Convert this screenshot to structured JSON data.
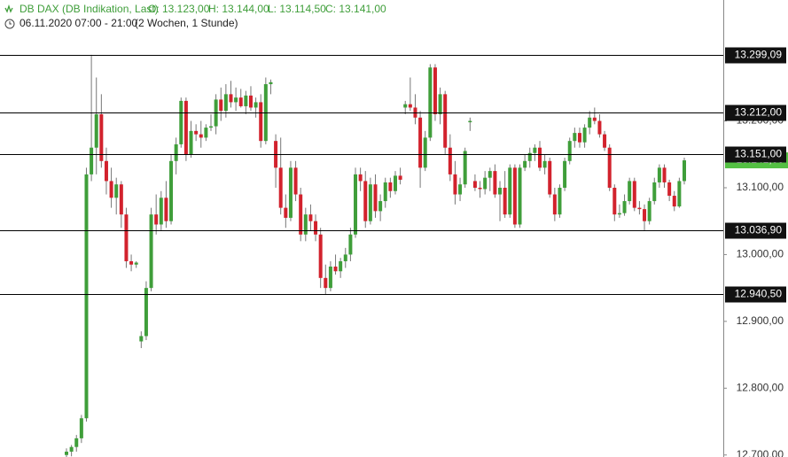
{
  "header": {
    "symbol": "DB DAX (DB Indikation, Last)",
    "open": "O: 13.123,00",
    "high": "H: 13.144,00",
    "low": "L: 13.114,50",
    "close": "C: 13.141,00",
    "period": "06.11.2020 07:00 - 21:00",
    "range": "(2 Wochen, 1 Stunde)"
  },
  "chart_data": {
    "type": "candlestick",
    "ylim": [
      12697,
      13381
    ],
    "yticks": [
      {
        "value": 13200,
        "label": "13.200,00"
      },
      {
        "value": 13100,
        "label": "13.100,00"
      },
      {
        "value": 13000,
        "label": "13.000,00"
      },
      {
        "value": 12900,
        "label": "12.900,00"
      },
      {
        "value": 12800,
        "label": "12.800,00"
      },
      {
        "value": 12700,
        "label": "12.700,00"
      }
    ],
    "levels": [
      {
        "value": 13299.09,
        "label": "13.299,09"
      },
      {
        "value": 13212,
        "label": "13.212,00"
      },
      {
        "value": 13151,
        "label": "13.151,00"
      },
      {
        "value": 13036.9,
        "label": "13.036,90"
      },
      {
        "value": 12940.5,
        "label": "12.940,50"
      }
    ],
    "last_price": {
      "value": 13141,
      "label": "13.141,00"
    },
    "up_color": "#3f9e3a",
    "down_color": "#d2222d",
    "ohlc": [
      [
        12700,
        12710,
        12690,
        12705
      ],
      [
        12705,
        12715,
        12698,
        12712
      ],
      [
        12712,
        12730,
        12705,
        12725
      ],
      [
        12725,
        12760,
        12718,
        12755
      ],
      [
        12755,
        13130,
        12750,
        13120
      ],
      [
        13120,
        13299,
        13110,
        13160
      ],
      [
        13160,
        13265,
        13120,
        13210
      ],
      [
        13210,
        13240,
        13130,
        13140
      ],
      [
        13140,
        13160,
        13090,
        13110
      ],
      [
        13110,
        13130,
        13070,
        13085
      ],
      [
        13085,
        13115,
        13060,
        13105
      ],
      [
        13105,
        13110,
        13040,
        13060
      ],
      [
        13060,
        13070,
        12980,
        12990
      ],
      [
        12990,
        13000,
        12975,
        12985
      ],
      [
        12985,
        12990,
        12980,
        12988
      ],
      [
        12870,
        12885,
        12860,
        12878
      ],
      [
        12878,
        12960,
        12872,
        12950
      ],
      [
        12950,
        13070,
        12945,
        13060
      ],
      [
        13060,
        13090,
        13030,
        13045
      ],
      [
        13045,
        13095,
        13035,
        13085
      ],
      [
        13085,
        13110,
        13040,
        13050
      ],
      [
        13050,
        13150,
        13045,
        13140
      ],
      [
        13140,
        13175,
        13120,
        13165
      ],
      [
        13165,
        13235,
        13160,
        13230
      ],
      [
        13230,
        13235,
        13140,
        13150
      ],
      [
        13150,
        13200,
        13145,
        13185
      ],
      [
        13185,
        13195,
        13170,
        13180
      ],
      [
        13180,
        13200,
        13160,
        13175
      ],
      [
        13175,
        13195,
        13170,
        13190
      ],
      [
        13190,
        13210,
        13185,
        13192
      ],
      [
        13192,
        13240,
        13180,
        13232
      ],
      [
        13232,
        13250,
        13200,
        13215
      ],
      [
        13215,
        13255,
        13205,
        13240
      ],
      [
        13240,
        13260,
        13220,
        13228
      ],
      [
        13228,
        13250,
        13215,
        13235
      ],
      [
        13235,
        13248,
        13220,
        13222
      ],
      [
        13222,
        13245,
        13210,
        13238
      ],
      [
        13238,
        13252,
        13215,
        13220
      ],
      [
        13220,
        13235,
        13205,
        13228
      ],
      [
        13228,
        13240,
        13160,
        13170
      ],
      [
        13170,
        13265,
        13165,
        13255
      ],
      [
        13255,
        13262,
        13240,
        13258
      ],
      [
        13170,
        13180,
        13100,
        13130
      ],
      [
        13130,
        13175,
        13060,
        13070
      ],
      [
        13070,
        13090,
        13040,
        13055
      ],
      [
        13055,
        13140,
        13050,
        13130
      ],
      [
        13130,
        13140,
        13080,
        13090
      ],
      [
        13090,
        13100,
        13020,
        13030
      ],
      [
        13030,
        13070,
        13020,
        13060
      ],
      [
        13060,
        13075,
        13035,
        13050
      ],
      [
        13050,
        13060,
        13020,
        13030
      ],
      [
        13030,
        13040,
        12950,
        12965
      ],
      [
        12965,
        12985,
        12940,
        12950
      ],
      [
        12950,
        12990,
        12945,
        12982
      ],
      [
        12982,
        13000,
        12970,
        12975
      ],
      [
        12975,
        12995,
        12965,
        12990
      ],
      [
        12990,
        13010,
        12980,
        13000
      ],
      [
        13000,
        13040,
        12990,
        13030
      ],
      [
        13030,
        13130,
        13025,
        13120
      ],
      [
        13120,
        13130,
        13095,
        13110
      ],
      [
        13110,
        13125,
        13040,
        13050
      ],
      [
        13050,
        13115,
        13045,
        13105
      ],
      [
        13105,
        13120,
        13055,
        13065
      ],
      [
        13065,
        13090,
        13050,
        13080
      ],
      [
        13080,
        13115,
        13070,
        13108
      ],
      [
        13108,
        13115,
        13085,
        13095
      ],
      [
        13095,
        13125,
        13090,
        13118
      ],
      [
        13118,
        13130,
        13105,
        13112
      ],
      [
        13220,
        13230,
        13210,
        13225
      ],
      [
        13225,
        13265,
        13215,
        13220
      ],
      [
        13220,
        13240,
        13195,
        13205
      ],
      [
        13205,
        13215,
        13100,
        13130
      ],
      [
        13130,
        13185,
        13125,
        13175
      ],
      [
        13175,
        13285,
        13170,
        13280
      ],
      [
        13280,
        13285,
        13200,
        13210
      ],
      [
        13210,
        13250,
        13195,
        13240
      ],
      [
        13240,
        13245,
        13150,
        13160
      ],
      [
        13160,
        13180,
        13110,
        13120
      ],
      [
        13120,
        13140,
        13075,
        13090
      ],
      [
        13090,
        13115,
        13080,
        13105
      ],
      [
        13105,
        13160,
        13100,
        13155
      ],
      [
        13198,
        13205,
        13185,
        13200
      ],
      [
        13110,
        13120,
        13095,
        13100
      ],
      [
        13100,
        13110,
        13085,
        13098
      ],
      [
        13098,
        13125,
        13090,
        13115
      ],
      [
        13115,
        13130,
        13095,
        13125
      ],
      [
        13125,
        13135,
        13085,
        13090
      ],
      [
        13090,
        13110,
        13050,
        13100
      ],
      [
        13100,
        13125,
        13055,
        13060
      ],
      [
        13060,
        13135,
        13055,
        13130
      ],
      [
        13130,
        13135,
        13040,
        13045
      ],
      [
        13045,
        13135,
        13040,
        13130
      ],
      [
        13130,
        13150,
        13125,
        13140
      ],
      [
        13140,
        13160,
        13130,
        13152
      ],
      [
        13152,
        13165,
        13140,
        13160
      ],
      [
        13160,
        13170,
        13125,
        13130
      ],
      [
        13130,
        13150,
        13120,
        13140
      ],
      [
        13140,
        13145,
        13085,
        13090
      ],
      [
        13090,
        13100,
        13050,
        13060
      ],
      [
        13060,
        13105,
        13055,
        13100
      ],
      [
        13100,
        13145,
        13095,
        13140
      ],
      [
        13140,
        13175,
        13135,
        13170
      ],
      [
        13170,
        13190,
        13160,
        13182
      ],
      [
        13182,
        13190,
        13160,
        13168
      ],
      [
        13168,
        13195,
        13160,
        13190
      ],
      [
        13190,
        13215,
        13180,
        13205
      ],
      [
        13205,
        13220,
        13195,
        13200
      ],
      [
        13200,
        13210,
        13175,
        13180
      ],
      [
        13180,
        13185,
        13155,
        13160
      ],
      [
        13160,
        13165,
        13095,
        13100
      ],
      [
        13100,
        13105,
        13050,
        13060
      ],
      [
        13060,
        13075,
        13055,
        13062
      ],
      [
        13062,
        13090,
        13058,
        13080
      ],
      [
        13080,
        13115,
        13075,
        13110
      ],
      [
        13110,
        13115,
        13065,
        13070
      ],
      [
        13070,
        13080,
        13060,
        13068
      ],
      [
        13068,
        13075,
        13035,
        13050
      ],
      [
        13050,
        13085,
        13045,
        13080
      ],
      [
        13080,
        13115,
        13075,
        13108
      ],
      [
        13108,
        13135,
        13100,
        13130
      ],
      [
        13130,
        13135,
        13100,
        13108
      ],
      [
        13108,
        13112,
        13080,
        13088
      ],
      [
        13088,
        13095,
        13065,
        13072
      ],
      [
        13072,
        13115,
        13070,
        13110
      ],
      [
        13110,
        13145,
        13105,
        13141
      ]
    ]
  }
}
